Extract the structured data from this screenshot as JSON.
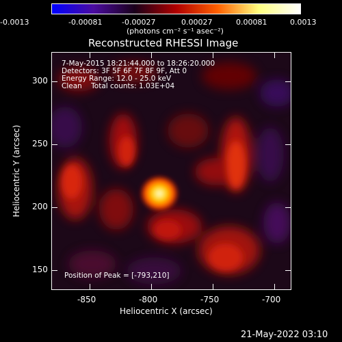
{
  "colorbar": {
    "tick_labels": [
      "-0.0013",
      "-0.00081",
      "-0.00027",
      "0.00027",
      "0.00081",
      "0.0013"
    ],
    "unit_label": "(photons cm⁻² s⁻¹ asec⁻²)",
    "gradient_colors": [
      "#0000ff",
      "#4b0ca0",
      "#1a001a",
      "#b00000",
      "#ff6000",
      "#ffff80",
      "#ffffff"
    ]
  },
  "plot": {
    "title": "Reconstructed RHESSI Image",
    "info_lines": [
      "7-May-2015 18:21:44.000 to 18:26:20.000",
      "Detectors: 3F 5F 6F 7F 8F 9F, Att 0",
      "Energy Range: 12.0 - 25.0 keV",
      "Clean    Total counts: 1.03E+04"
    ],
    "peak_label": "Position of Peak = [-793,210]",
    "x_axis": {
      "label": "Heliocentric X (arcsec)",
      "ticks": [
        "-850",
        "-800",
        "-750",
        "-700"
      ],
      "range": [
        -885,
        -690
      ]
    },
    "y_axis": {
      "label": "Heliocentric Y (arcsec)",
      "ticks": [
        "300",
        "250",
        "200",
        "150"
      ],
      "range": [
        130,
        325
      ]
    },
    "peak": {
      "x": -793,
      "y": 210
    }
  },
  "footer": {
    "timestamp": "21-May-2022 03:10"
  }
}
